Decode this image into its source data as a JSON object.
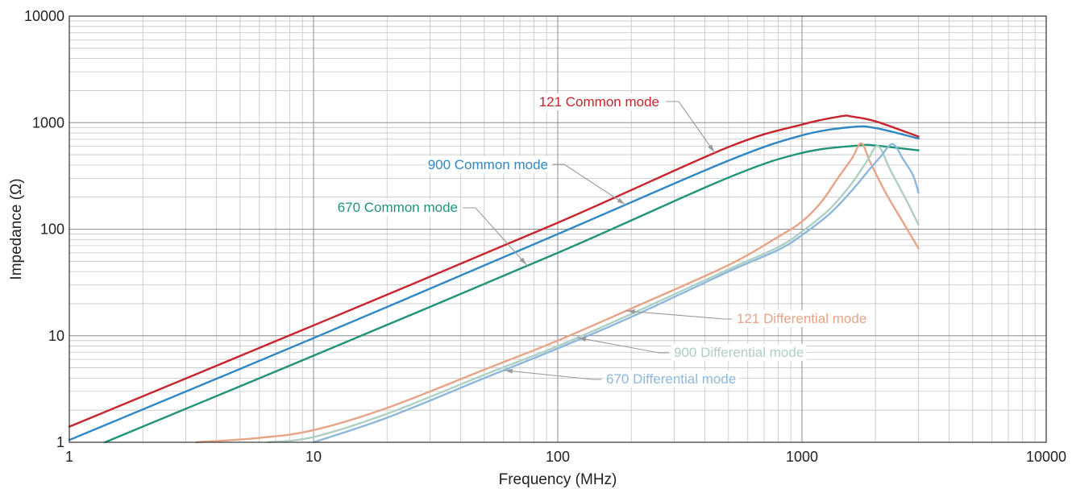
{
  "chart_data": {
    "type": "line",
    "title": "",
    "xlabel": "Frequency (MHz)",
    "ylabel": "Impedance (Ω)",
    "x_scale": "log",
    "y_scale": "log",
    "xlim": [
      1,
      10000
    ],
    "ylim": [
      1,
      10000
    ],
    "x_ticks": [
      "1",
      "10",
      "100",
      "1000",
      "10000"
    ],
    "y_ticks": [
      "1",
      "10",
      "100",
      "1000",
      "10000"
    ],
    "grid": true,
    "series": [
      {
        "name": "121 Common mode",
        "color": "#c8242b",
        "points": [
          [
            1,
            1.4
          ],
          [
            10,
            12.5
          ],
          [
            100,
            115
          ],
          [
            500,
            590
          ],
          [
            1000,
            960
          ],
          [
            1450,
            1150
          ],
          [
            1600,
            1140
          ],
          [
            2000,
            1030
          ],
          [
            3000,
            740
          ]
        ]
      },
      {
        "name": "900 Common mode",
        "color": "#2f88c4",
        "points": [
          [
            1,
            1.05
          ],
          [
            10,
            9.5
          ],
          [
            100,
            90
          ],
          [
            500,
            440
          ],
          [
            1000,
            760
          ],
          [
            1600,
            910
          ],
          [
            2000,
            890
          ],
          [
            3000,
            710
          ]
        ]
      },
      {
        "name": "670 Common mode",
        "color": "#1f9478",
        "points": [
          [
            1.4,
            1
          ],
          [
            10,
            6.5
          ],
          [
            100,
            60
          ],
          [
            500,
            305
          ],
          [
            1000,
            520
          ],
          [
            1700,
            610
          ],
          [
            2000,
            610
          ],
          [
            3000,
            550
          ]
        ]
      },
      {
        "name": "121 Differential mode",
        "color": "#e8a487",
        "points": [
          [
            3.3,
            1
          ],
          [
            6,
            1.1
          ],
          [
            10,
            1.3
          ],
          [
            20,
            2.1
          ],
          [
            50,
            4.8
          ],
          [
            100,
            9
          ],
          [
            200,
            18
          ],
          [
            500,
            46
          ],
          [
            800,
            85
          ],
          [
            1000,
            118
          ],
          [
            1200,
            180
          ],
          [
            1400,
            300
          ],
          [
            1600,
            460
          ],
          [
            1750,
            640
          ],
          [
            1900,
            430
          ],
          [
            2200,
            220
          ],
          [
            2600,
            115
          ],
          [
            3000,
            66
          ]
        ]
      },
      {
        "name": "900 Differential mode",
        "color": "#aecfc4",
        "points": [
          [
            6.5,
            1
          ],
          [
            10,
            1.12
          ],
          [
            20,
            1.85
          ],
          [
            50,
            4.3
          ],
          [
            100,
            8
          ],
          [
            200,
            16
          ],
          [
            500,
            42
          ],
          [
            800,
            68
          ],
          [
            1000,
            95
          ],
          [
            1300,
            155
          ],
          [
            1600,
            270
          ],
          [
            1850,
            440
          ],
          [
            2050,
            600
          ],
          [
            2300,
            360
          ],
          [
            2700,
            180
          ],
          [
            3000,
            110
          ]
        ]
      },
      {
        "name": "670 Differential mode",
        "color": "#8db8dc",
        "points": [
          [
            10,
            1
          ],
          [
            20,
            1.7
          ],
          [
            50,
            4
          ],
          [
            100,
            7.6
          ],
          [
            200,
            15
          ],
          [
            500,
            40
          ],
          [
            800,
            64
          ],
          [
            1000,
            88
          ],
          [
            1300,
            140
          ],
          [
            1600,
            230
          ],
          [
            1900,
            370
          ],
          [
            2100,
            480
          ],
          [
            2350,
            630
          ],
          [
            2600,
            450
          ],
          [
            2850,
            320
          ],
          [
            3000,
            220
          ]
        ]
      }
    ],
    "annotations": [
      {
        "text": "121 Common mode",
        "series": "121 Common mode",
        "target_x": 440
      },
      {
        "text": "900 Common mode",
        "series": "900 Common mode",
        "target_x": 190
      },
      {
        "text": "670 Common mode",
        "series": "670 Common mode",
        "target_x": 75
      },
      {
        "text": "121 Differential mode",
        "series": "121 Differential mode",
        "target_x": 190
      },
      {
        "text": "900 Differential mode",
        "series": "900 Differential mode",
        "target_x": 120
      },
      {
        "text": "670 Differential mode",
        "series": "670 Differential mode",
        "target_x": 60
      }
    ]
  }
}
